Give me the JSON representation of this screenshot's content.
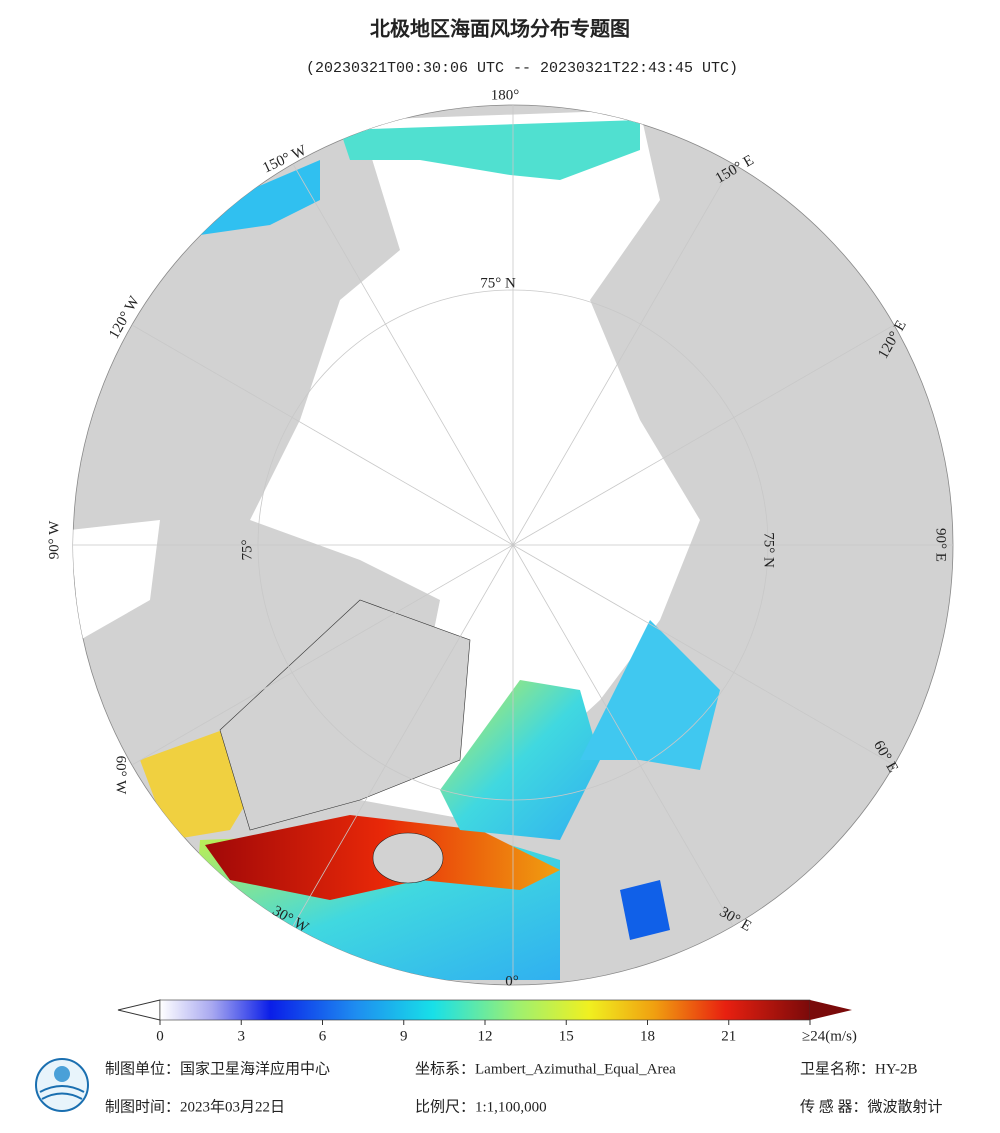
{
  "header": {
    "title": "北极地区海面风场分布专题图",
    "subtitle": "(20230321T00:30:06 UTC -- 20230321T22:43:45 UTC)"
  },
  "map": {
    "longitude_labels": [
      "180°",
      "150° E",
      "120° E",
      "90° E",
      "60° E",
      "30° E",
      "0°",
      "30° W",
      "60° W",
      "90° W",
      "120° W",
      "150° W"
    ],
    "latitude_labels": [
      "75° N",
      "75° N",
      "75°"
    ]
  },
  "colorbar": {
    "range": [
      0,
      24
    ],
    "ticks": [
      0,
      3,
      6,
      9,
      12,
      15,
      18,
      21,
      {
        "value": 24,
        "label": "≥24(m/s)"
      }
    ]
  },
  "footer": {
    "unit": "制图单位：国家卫星海洋应用中心",
    "projection": "坐标系：Lambert_Azimuthal_Equal_Area",
    "satellite": "卫星名称：HY-2B",
    "date": "制图时间：2023年03月22日",
    "scale": "比例尺：1:1,100,000",
    "sensor": "传 感 器：微波散射计"
  }
}
